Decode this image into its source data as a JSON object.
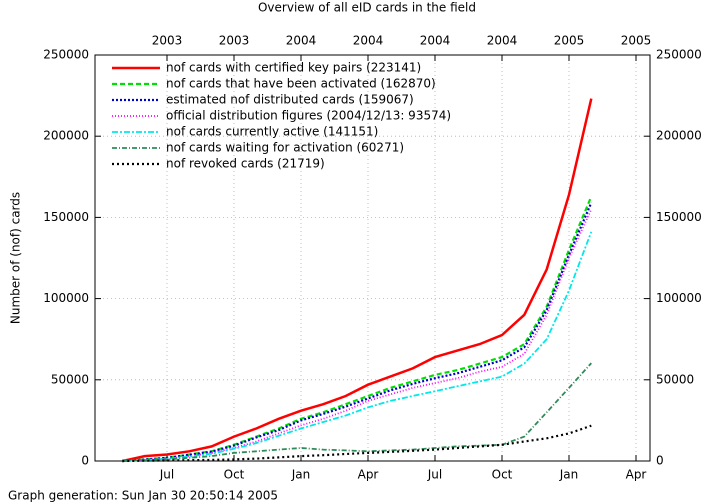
{
  "chart_data": {
    "type": "line",
    "title": "Overview of all eID cards in the field",
    "ylabel": "Number of (nof) cards",
    "footer": "Graph generation: Sun Jan 30 20:50:14 2005",
    "x": [
      "2003-05",
      "2003-06",
      "2003-07",
      "2003-08",
      "2003-09",
      "2003-10",
      "2003-11",
      "2003-12",
      "2004-01",
      "2004-02",
      "2004-03",
      "2004-04",
      "2004-05",
      "2004-06",
      "2004-07",
      "2004-08",
      "2004-09",
      "2004-10",
      "2004-11",
      "2004-12",
      "2005-01",
      "2005-02"
    ],
    "xlim": [
      "2003-04",
      "2005-04"
    ],
    "xticks": [
      {
        "value": "2003-07",
        "label": "Jul"
      },
      {
        "value": "2003-10",
        "label": "Oct"
      },
      {
        "value": "2004-01",
        "label": "Jan"
      },
      {
        "value": "2004-04",
        "label": "Apr"
      },
      {
        "value": "2004-07",
        "label": "Jul"
      },
      {
        "value": "2004-10",
        "label": "Oct"
      },
      {
        "value": "2005-01",
        "label": "Jan"
      },
      {
        "value": "2005-04",
        "label": "Apr"
      }
    ],
    "x2ticks": [
      {
        "value": "2003-07",
        "label": "2003"
      },
      {
        "value": "2003-10",
        "label": "2003"
      },
      {
        "value": "2004-01",
        "label": "2004"
      },
      {
        "value": "2004-04",
        "label": "2004"
      },
      {
        "value": "2004-07",
        "label": "2004"
      },
      {
        "value": "2004-10",
        "label": "2004"
      },
      {
        "value": "2005-01",
        "label": "2005"
      },
      {
        "value": "2005-04",
        "label": "2005"
      }
    ],
    "ylim": [
      0,
      250000
    ],
    "yticks": [
      0,
      50000,
      100000,
      150000,
      200000,
      250000
    ],
    "y2lim": [
      0,
      250000
    ],
    "y2ticks": [
      0,
      50000,
      100000,
      150000,
      200000,
      250000
    ],
    "grid": true,
    "legend": "upper left",
    "series": [
      {
        "name": "nof cards with certified key pairs (223141)",
        "color": "#ff0000",
        "values": [
          0,
          3000,
          4000,
          6000,
          9000,
          15000,
          20000,
          26000,
          31000,
          35000,
          40000,
          47000,
          52000,
          57000,
          64000,
          68000,
          72000,
          77600,
          90000,
          118000,
          164000,
          223141
        ]
      },
      {
        "name": "nof cards that have been activated (162870)",
        "color": "#00e000",
        "values": [
          0,
          1000,
          2000,
          4000,
          6000,
          10000,
          15000,
          20000,
          26000,
          30000,
          35000,
          40000,
          45000,
          49000,
          53000,
          56000,
          60000,
          64000,
          72000,
          95000,
          130000,
          162870
        ]
      },
      {
        "name": "estimated nof distributed cards (159067)",
        "color": "#0000c8",
        "values": [
          0,
          900,
          1900,
          3800,
          5800,
          9500,
          14500,
          19000,
          25000,
          29000,
          33500,
          38500,
          43500,
          47500,
          51000,
          54000,
          58000,
          62000,
          70000,
          93000,
          127000,
          159067
        ]
      },
      {
        "name": "official distribution figures (2004/12/13: 93574)",
        "color": "#ff00ff",
        "values": [
          0,
          700,
          1500,
          3000,
          5000,
          8000,
          12000,
          17000,
          22000,
          26000,
          31000,
          37000,
          41000,
          45000,
          48000,
          51000,
          55000,
          58000,
          66000,
          90000,
          125000,
          155000
        ]
      },
      {
        "name": "nof cards currently active (141151)",
        "color": "#00e8e8",
        "values": [
          0,
          600,
          1300,
          2800,
          4500,
          7500,
          11000,
          15500,
          20000,
          24000,
          28000,
          33000,
          37000,
          40000,
          43000,
          46000,
          49000,
          52000,
          60000,
          75000,
          105000,
          141151
        ]
      },
      {
        "name": "nof cards waiting for activation (60271)",
        "color": "#2e8b57",
        "values": [
          0,
          500,
          1000,
          2000,
          3000,
          5000,
          6000,
          7000,
          8000,
          7000,
          6500,
          6000,
          6500,
          7000,
          8000,
          9000,
          9500,
          10000,
          15000,
          30000,
          45000,
          60271
        ]
      },
      {
        "name": "nof revoked cards (21719)",
        "color": "#000000",
        "values": [
          0,
          200,
          300,
          500,
          700,
          1000,
          1500,
          2200,
          3000,
          3600,
          4300,
          5000,
          5600,
          6300,
          7000,
          8000,
          9000,
          10000,
          12000,
          14000,
          17000,
          21719
        ]
      }
    ]
  }
}
